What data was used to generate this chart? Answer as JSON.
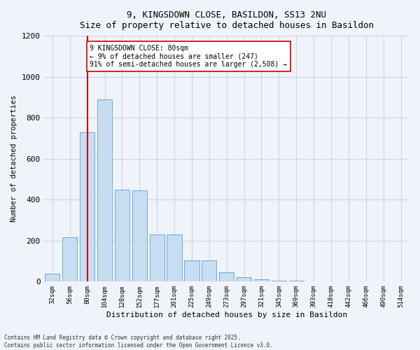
{
  "title1": "9, KINGSDOWN CLOSE, BASILDON, SS13 2NU",
  "title2": "Size of property relative to detached houses in Basildon",
  "xlabel": "Distribution of detached houses by size in Basildon",
  "ylabel": "Number of detached properties",
  "categories": [
    "32sqm",
    "56sqm",
    "80sqm",
    "104sqm",
    "128sqm",
    "152sqm",
    "177sqm",
    "201sqm",
    "225sqm",
    "249sqm",
    "273sqm",
    "297sqm",
    "321sqm",
    "345sqm",
    "369sqm",
    "393sqm",
    "418sqm",
    "442sqm",
    "466sqm",
    "490sqm",
    "514sqm"
  ],
  "values": [
    40,
    215,
    730,
    890,
    450,
    445,
    230,
    230,
    105,
    105,
    45,
    20,
    10,
    5,
    3,
    2,
    1,
    1,
    0,
    0,
    0
  ],
  "bar_color": "#c9ddf2",
  "bar_edge_color": "#6aaad4",
  "vline_x_index": 2,
  "vline_color": "#cc0000",
  "annotation_text": "9 KINGSDOWN CLOSE: 80sqm\n← 9% of detached houses are smaller (247)\n91% of semi-detached houses are larger (2,508) →",
  "annotation_box_color": "#ffffff",
  "annotation_box_edge": "#cc0000",
  "ylim": [
    0,
    1200
  ],
  "yticks": [
    0,
    200,
    400,
    600,
    800,
    1000,
    1200
  ],
  "footer1": "Contains HM Land Registry data © Crown copyright and database right 2025.",
  "footer2": "Contains public sector information licensed under the Open Government Licence v3.0.",
  "bg_color": "#f0f4fa",
  "grid_color": "#c8d4e8"
}
